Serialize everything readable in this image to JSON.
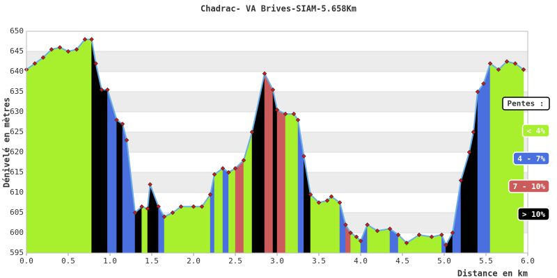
{
  "chart_data": {
    "type": "elevation-profile",
    "title": "Chadrac-  VA Brives-SIAM-5.658Km",
    "x_label": "Distance en km",
    "y_label": "Dénivelé en mètres",
    "legend_title": "Pentes :",
    "slope_classes": [
      {
        "name": "< 4%",
        "color": "#a8f02e"
      },
      {
        "name": "4 - 7%",
        "color": "#4a70e0"
      },
      {
        "name": "7 - 10%",
        "color": "#cc5c5c"
      },
      {
        "name": "> 10%",
        "color": "#000000"
      }
    ],
    "line_color": "#6aaee8",
    "marker_color": "#d01818",
    "x": [
      0,
      0.1,
      0.2,
      0.3,
      0.4,
      0.5,
      0.6,
      0.7,
      0.78,
      0.83,
      0.9,
      0.97,
      1.08,
      1.15,
      1.2,
      1.3,
      1.38,
      1.45,
      1.48,
      1.58,
      1.65,
      1.75,
      1.85,
      2.0,
      2.1,
      2.2,
      2.25,
      2.35,
      2.42,
      2.5,
      2.6,
      2.7,
      2.85,
      2.95,
      3.0,
      3.1,
      3.2,
      3.25,
      3.32,
      3.4,
      3.5,
      3.6,
      3.65,
      3.75,
      3.82,
      3.88,
      3.95,
      4.0,
      4.08,
      4.2,
      4.35,
      4.45,
      4.55,
      4.7,
      4.85,
      4.97,
      5.02,
      5.1,
      5.2,
      5.3,
      5.35,
      5.4,
      5.47,
      5.55,
      5.65,
      5.75,
      5.85,
      5.95
    ],
    "values": [
      640.5,
      642,
      643.5,
      645.5,
      646,
      645,
      645.5,
      648,
      648,
      642,
      635.5,
      635.5,
      628,
      627,
      623,
      605,
      606.5,
      606,
      612,
      606.5,
      604,
      605,
      606.5,
      606.5,
      606.5,
      609.5,
      614.5,
      616,
      615,
      616,
      618,
      625,
      639.5,
      635.5,
      630.5,
      629.5,
      629.5,
      628,
      619,
      609.5,
      607.5,
      608,
      609,
      607.5,
      602,
      600,
      599,
      598,
      602,
      600.5,
      601,
      599.5,
      597.5,
      599.5,
      599,
      599.5,
      597,
      600,
      613,
      620,
      625,
      635,
      637,
      642,
      640.5,
      642.5,
      642,
      640.5
    ],
    "segment_class": [
      0,
      0,
      0,
      0,
      0,
      0,
      0,
      0,
      3,
      3,
      3,
      1,
      3,
      1,
      1,
      3,
      0,
      3,
      3,
      1,
      0,
      0,
      0,
      0,
      0,
      1,
      0,
      1,
      0,
      2,
      0,
      3,
      2,
      3,
      2,
      0,
      0,
      1,
      3,
      0,
      0,
      0,
      0,
      1,
      2,
      0,
      0,
      1,
      0,
      0,
      1,
      0,
      0,
      0,
      0,
      1,
      3,
      1,
      3,
      3,
      3,
      1,
      1,
      0,
      0,
      0,
      0
    ],
    "xlim": [
      0,
      6
    ],
    "ylim": [
      595,
      650
    ],
    "xticks": [
      {
        "value": 0,
        "label": "0.0"
      },
      0.5,
      {
        "value": 1,
        "label": "1.0"
      },
      1.5,
      {
        "value": 2,
        "label": "2.0"
      },
      2.5,
      {
        "value": 3,
        "label": "3.0"
      },
      3.5,
      {
        "value": 4,
        "label": "4.0"
      },
      4.5,
      {
        "value": 5,
        "label": "5.0"
      },
      5.5,
      {
        "value": 6,
        "label": "6.0"
      }
    ],
    "yticks": [
      595,
      600,
      605,
      610,
      615,
      620,
      625,
      630,
      635,
      640,
      645,
      650
    ],
    "banded_grid": true
  }
}
